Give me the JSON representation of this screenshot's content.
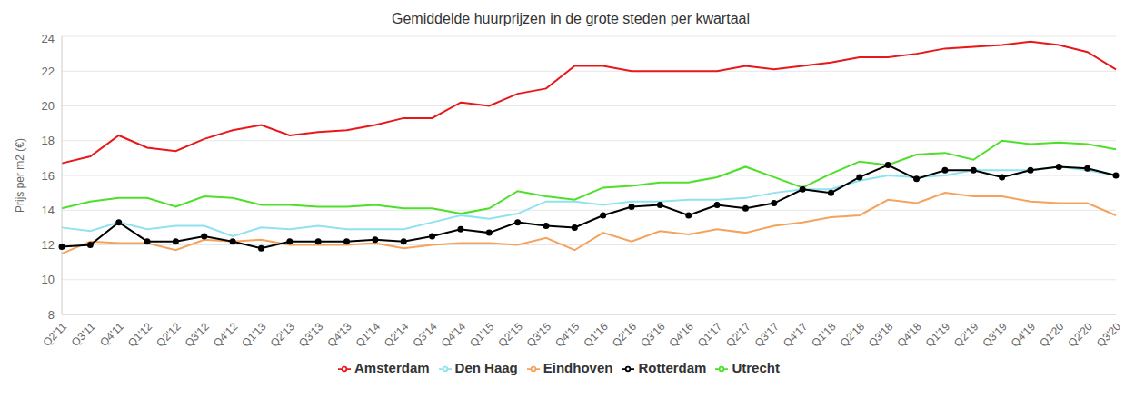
{
  "chart_data": {
    "type": "line",
    "title": "Gemiddelde huurprijzen in de grote steden per kwartaal",
    "y_label": "Prijs per m2 (€)",
    "categories": [
      "Q2'11",
      "Q3'11",
      "Q4'11",
      "Q1'12",
      "Q2'12",
      "Q3'12",
      "Q4'12",
      "Q1'13",
      "Q2'13",
      "Q3'13",
      "Q4'13",
      "Q1'14",
      "Q2'14",
      "Q3'14",
      "Q4'14",
      "Q1'15",
      "Q2'15",
      "Q3'15",
      "Q4'15",
      "Q1'16",
      "Q2'16",
      "Q3'16",
      "Q4'16",
      "Q1'17",
      "Q2'17",
      "Q3'17",
      "Q4'17",
      "Q1'18",
      "Q2'18",
      "Q3'18",
      "Q4'18",
      "Q1'19",
      "Q2'19",
      "Q3'19",
      "Q4'19",
      "Q1'20",
      "Q2'20",
      "Q3'20"
    ],
    "series": [
      {
        "name": "Den Haag",
        "color": "#8fe3f0",
        "marker": "none",
        "line_style": "solid",
        "values": [
          13.0,
          12.8,
          13.3,
          12.9,
          13.1,
          13.1,
          12.5,
          13.0,
          12.9,
          13.1,
          12.9,
          12.9,
          12.9,
          13.3,
          13.7,
          13.5,
          13.8,
          14.5,
          14.5,
          14.3,
          14.5,
          14.5,
          14.6,
          14.6,
          14.7,
          15.0,
          15.2,
          15.2,
          15.7,
          16.0,
          15.9,
          16.0,
          16.3,
          16.3,
          16.3,
          16.5,
          16.3,
          16.0
        ]
      },
      {
        "name": "Eindhoven",
        "color": "#f5a35c",
        "marker": "none",
        "line_style": "solid",
        "values": [
          11.5,
          12.2,
          12.1,
          12.1,
          11.7,
          12.3,
          12.2,
          12.3,
          12.0,
          12.0,
          12.0,
          12.1,
          11.8,
          12.0,
          12.1,
          12.1,
          12.0,
          12.4,
          11.7,
          12.7,
          12.2,
          12.8,
          12.6,
          12.9,
          12.7,
          13.1,
          13.3,
          13.6,
          13.7,
          14.6,
          14.4,
          15.0,
          14.8,
          14.8,
          14.5,
          14.4,
          14.4,
          13.7
        ]
      },
      {
        "name": "Rotterdam",
        "color": "#000000",
        "marker": "circle",
        "line_style": "solid",
        "values": [
          11.9,
          12.0,
          13.3,
          12.2,
          12.2,
          12.5,
          12.2,
          11.8,
          12.2,
          12.2,
          12.2,
          12.3,
          12.2,
          12.5,
          12.9,
          12.7,
          13.3,
          13.1,
          13.0,
          13.7,
          14.2,
          14.3,
          13.7,
          14.3,
          14.1,
          14.4,
          15.2,
          15.0,
          15.9,
          16.6,
          15.8,
          16.3,
          16.3,
          15.9,
          16.3,
          16.5,
          16.4,
          16.0
        ]
      },
      {
        "name": "Utrecht",
        "color": "#4ddf2a",
        "marker": "none",
        "line_style": "solid",
        "values": [
          14.1,
          14.5,
          14.7,
          14.7,
          14.2,
          14.8,
          14.7,
          14.3,
          14.3,
          14.2,
          14.2,
          14.3,
          14.1,
          14.1,
          13.8,
          14.1,
          15.1,
          14.8,
          14.6,
          15.3,
          15.4,
          15.6,
          15.6,
          15.9,
          16.5,
          15.9,
          15.3,
          16.1,
          16.8,
          16.6,
          17.2,
          17.3,
          16.9,
          18.0,
          17.8,
          17.9,
          17.8,
          17.5
        ]
      },
      {
        "name": "Amsterdam",
        "color": "#e8181a",
        "marker": "none",
        "line_style": "solid",
        "values": [
          16.7,
          17.1,
          18.3,
          17.6,
          17.4,
          18.1,
          18.6,
          18.9,
          18.3,
          18.5,
          18.6,
          18.9,
          19.3,
          19.3,
          20.2,
          20.0,
          20.7,
          21.0,
          22.3,
          22.3,
          22.0,
          22.0,
          22.0,
          22.0,
          22.3,
          22.1,
          22.3,
          22.5,
          22.8,
          22.8,
          23.0,
          23.3,
          23.4,
          23.5,
          23.7,
          23.5,
          23.1,
          22.1
        ]
      }
    ],
    "ylim": [
      8,
      24
    ],
    "yticks": [
      8,
      10,
      12,
      14,
      16,
      18,
      20,
      22,
      24
    ],
    "grid": true,
    "legend": "bottom"
  }
}
